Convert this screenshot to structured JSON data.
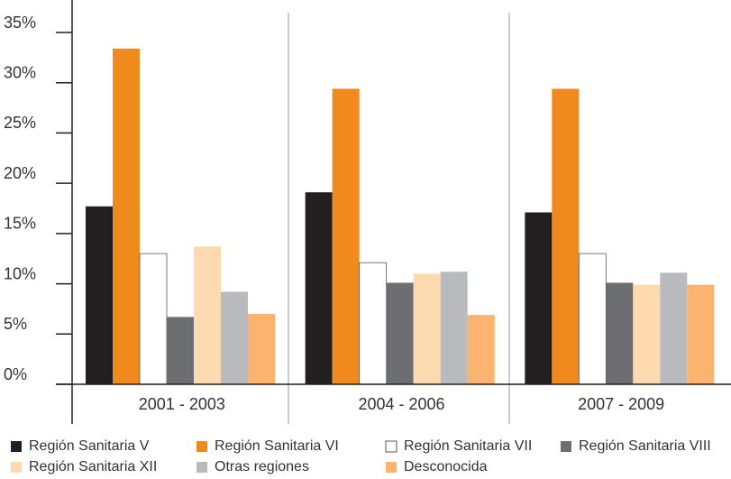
{
  "chart_data": {
    "type": "bar",
    "categories": [
      "2001 - 2003",
      "2004 - 2006",
      "2007 - 2009"
    ],
    "series": [
      {
        "name": "Región Sanitaria V",
        "color": "#231f20",
        "values": [
          17.7,
          19.1,
          17.1
        ]
      },
      {
        "name": "Región Sanitaria VI",
        "color": "#f08a1d",
        "values": [
          33.4,
          29.4,
          29.4
        ]
      },
      {
        "name": "Región Sanitaria VII",
        "color": "#ffffff",
        "values": [
          13.0,
          12.1,
          13.0
        ]
      },
      {
        "name": "Región Sanitaria VIII",
        "color": "#6d6e71",
        "values": [
          6.7,
          10.1,
          10.1
        ]
      },
      {
        "name": "Región Sanitaria XII",
        "color": "#fdd9b0",
        "values": [
          13.7,
          11.0,
          9.9
        ]
      },
      {
        "name": "Otras regiones",
        "color": "#b9babd",
        "values": [
          9.2,
          11.2,
          11.1
        ]
      },
      {
        "name": "Desconocida",
        "color": "#fbb36f",
        "values": [
          7.0,
          6.9,
          9.9
        ]
      }
    ],
    "ylim": [
      0,
      35
    ],
    "yticks": [
      {
        "value": 0,
        "label": "0%"
      },
      {
        "value": 5,
        "label": "5%"
      },
      {
        "value": 10,
        "label": "10%"
      },
      {
        "value": 15,
        "label": "15%"
      },
      {
        "value": 20,
        "label": "20%"
      },
      {
        "value": 25,
        "label": "25%"
      },
      {
        "value": 30,
        "label": "30%"
      },
      {
        "value": 35,
        "label": "35%"
      }
    ],
    "legend": "bottom"
  }
}
